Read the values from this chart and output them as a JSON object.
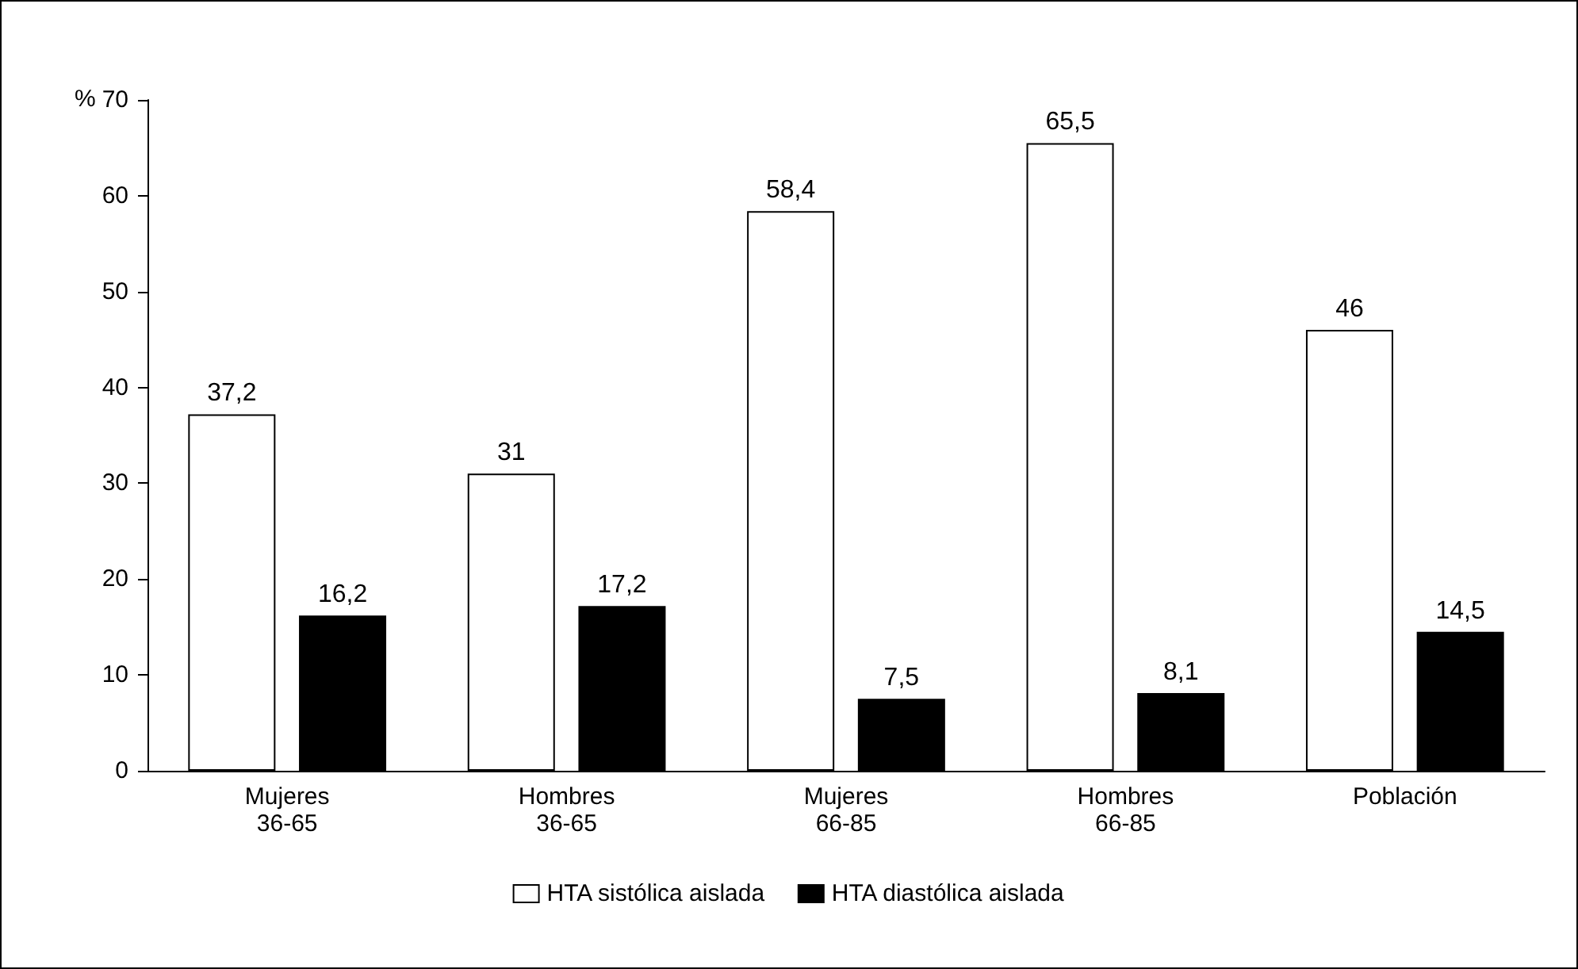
{
  "chart_data": {
    "type": "bar",
    "ylabel": "%",
    "categories": [
      "Mujeres 36-65",
      "Hombres 36-65",
      "Mujeres 66-85",
      "Hombres 66-85",
      "Población"
    ],
    "series": [
      {
        "name": "HTA sistólica aislada",
        "color": "#ffffff",
        "values": [
          37.2,
          31,
          58.4,
          65.5,
          46
        ],
        "value_labels": [
          "37,2",
          "31",
          "58,4",
          "65,5",
          "46"
        ]
      },
      {
        "name": "HTA diastólica aislada",
        "color": "#000000",
        "values": [
          16.2,
          17.2,
          7.5,
          8.1,
          14.5
        ],
        "value_labels": [
          "16,2",
          "17,2",
          "7,5",
          "8,1",
          "14,5"
        ]
      }
    ],
    "ylim": [
      0,
      70
    ],
    "yticks": [
      0,
      10,
      20,
      30,
      40,
      50,
      60,
      70
    ],
    "grid": false,
    "legend": "bottom"
  }
}
